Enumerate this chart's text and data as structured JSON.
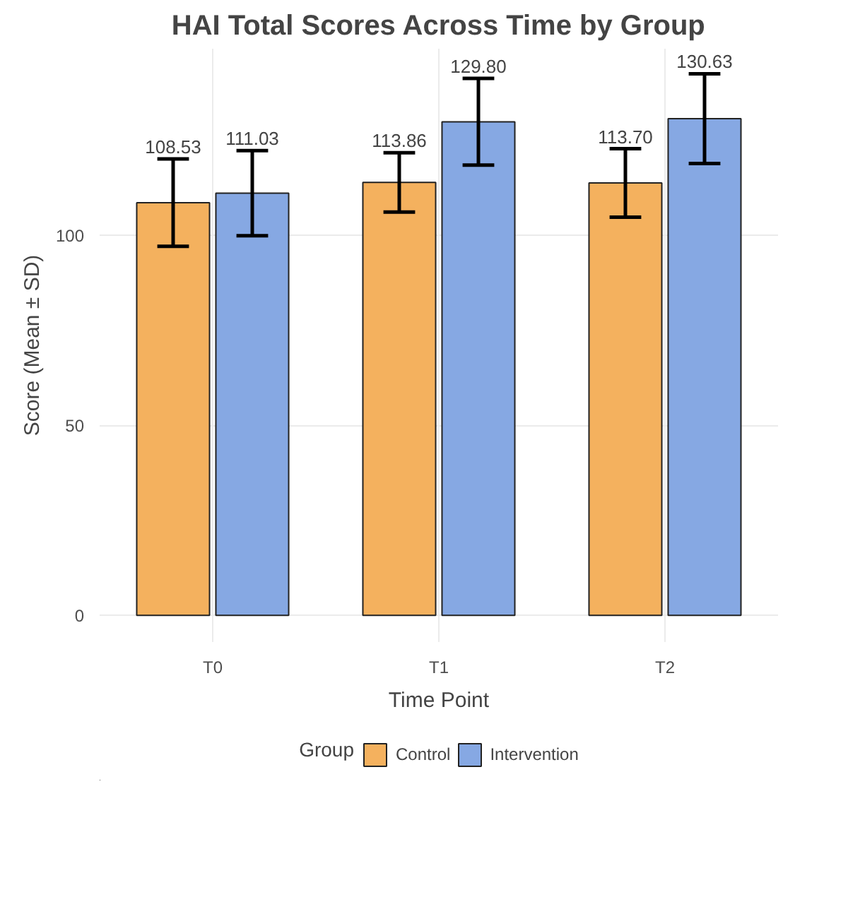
{
  "chart_data": {
    "type": "bar",
    "title": "HAI Total Scores Across Time by Group",
    "xlabel": "Time Point",
    "ylabel": "Score (Mean ± SD)",
    "legend_title": "Group",
    "categories": [
      "T0",
      "T1",
      "T2"
    ],
    "series": [
      {
        "name": "Control",
        "color": "#f4b15e",
        "values": [
          108.53,
          113.86,
          113.7
        ],
        "errors": [
          11.5,
          7.8,
          9.0
        ],
        "value_labels": [
          "108.53",
          "113.86",
          "113.70"
        ]
      },
      {
        "name": "Intervention",
        "color": "#86a8e3",
        "values": [
          111.03,
          129.8,
          130.63
        ],
        "errors": [
          11.2,
          11.4,
          11.8
        ],
        "value_labels": [
          "111.03",
          "129.80",
          "130.63"
        ]
      }
    ],
    "ylim": [
      -7,
      149
    ],
    "yticks": [
      0,
      50,
      100
    ],
    "grid": true,
    "legend": "bottom"
  }
}
